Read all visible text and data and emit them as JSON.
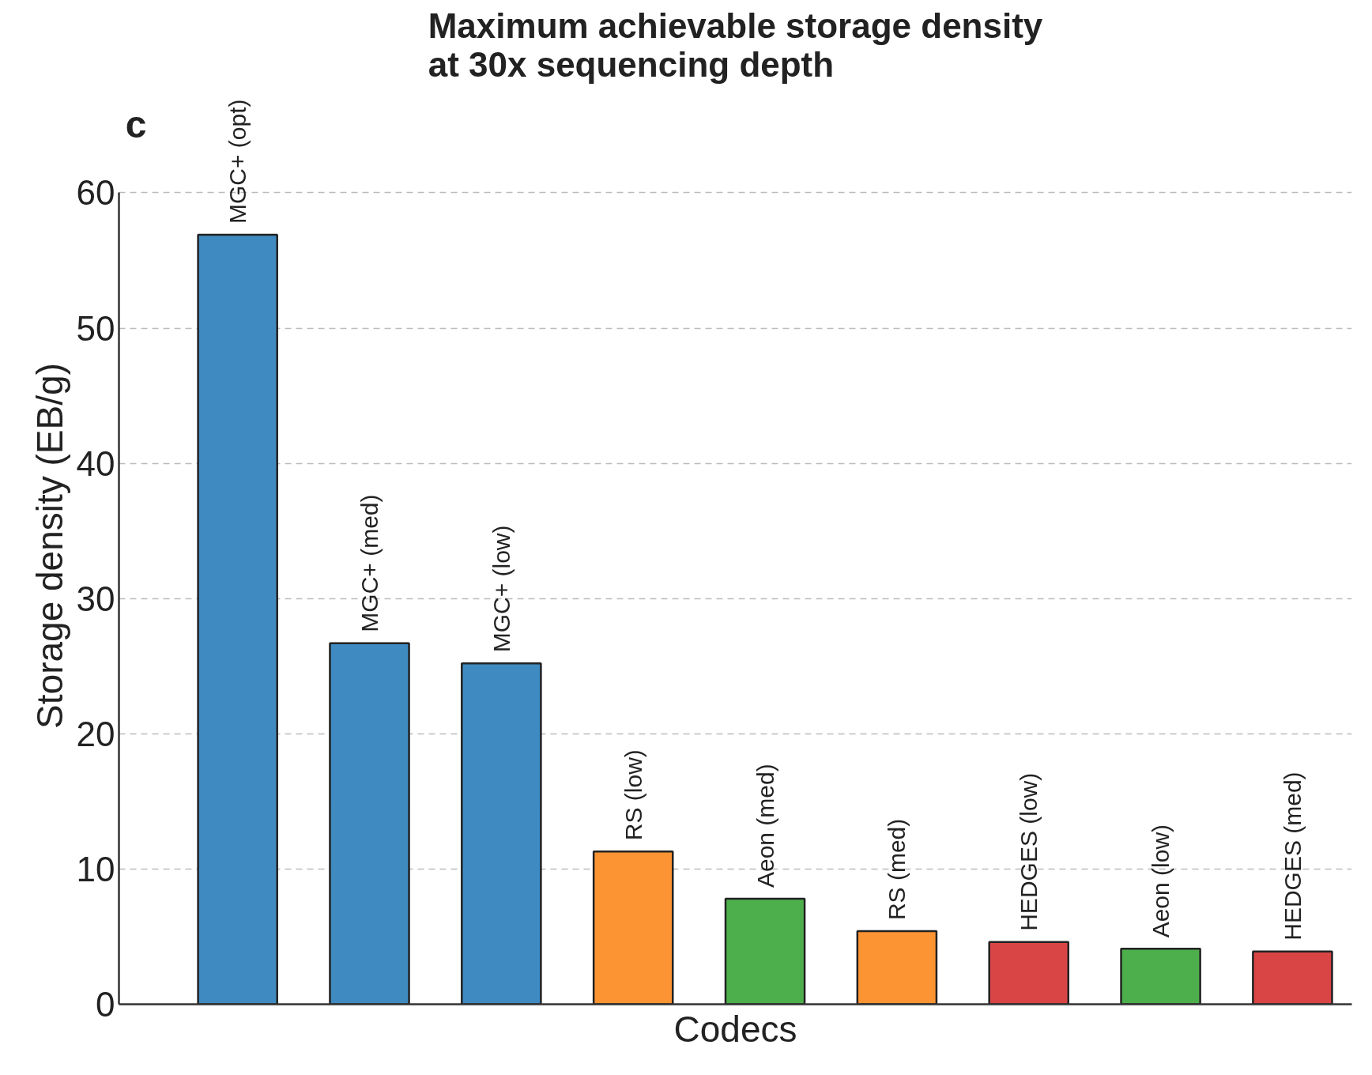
{
  "chart_data": {
    "type": "bar",
    "title": "Maximum achievable storage density\nat 30x sequencing depth",
    "xlabel": "Codecs",
    "ylabel": "Storage density (EB/g)",
    "categories": [
      "MGC+ (opt)",
      "MGC+ (med)",
      "MGC+ (low)",
      "RS (low)",
      "Aeon (med)",
      "RS (med)",
      "HEDGES (low)",
      "Aeon (low)",
      "HEDGES (med)"
    ],
    "values": [
      56.9,
      26.7,
      25.2,
      11.3,
      7.8,
      5.4,
      4.6,
      4.1,
      3.9
    ],
    "colors": [
      "#3f8bc1",
      "#3f8bc1",
      "#3f8bc1",
      "#fd9433",
      "#4daf4b",
      "#fd9433",
      "#d94545",
      "#4daf4b",
      "#d94545"
    ],
    "ylim": [
      0,
      60
    ],
    "yticks": [
      0,
      10,
      20,
      30,
      40,
      50,
      60
    ],
    "grid": "y",
    "annotations": [
      "c"
    ]
  }
}
